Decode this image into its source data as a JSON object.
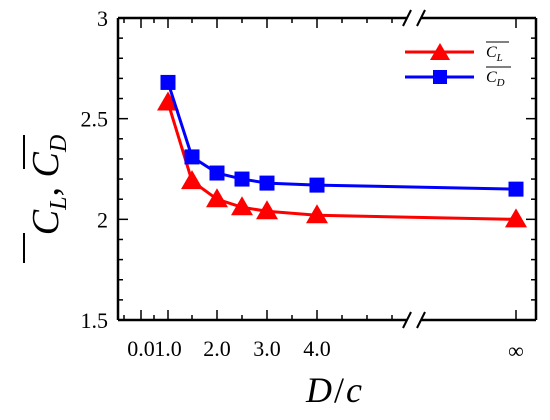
{
  "chart_data": {
    "type": "line",
    "title": "",
    "xlabel": "D/c",
    "ylabel": "C_L, C_D",
    "ylim": [
      1.5,
      3
    ],
    "y_ticks": [
      "1.5",
      "2",
      "2.5",
      "3"
    ],
    "x_ticks": [
      "0.0",
      "1.0",
      "2.0",
      "3.0",
      "4.0",
      "∞"
    ],
    "x_axis_break": true,
    "legend_position": "top-right",
    "grid": false,
    "x": [
      "1.0",
      "1.5",
      "2.0",
      "2.5",
      "3.0",
      "4.0",
      "∞"
    ],
    "series": [
      {
        "name": "C_L",
        "color": "#ff0000",
        "marker": "triangle",
        "values": [
          2.58,
          2.19,
          2.1,
          2.06,
          2.04,
          2.02,
          2.0
        ]
      },
      {
        "name": "C_D",
        "color": "#0000ff",
        "marker": "square",
        "values": [
          2.68,
          2.31,
          2.23,
          2.2,
          2.18,
          2.17,
          2.15
        ]
      }
    ]
  }
}
